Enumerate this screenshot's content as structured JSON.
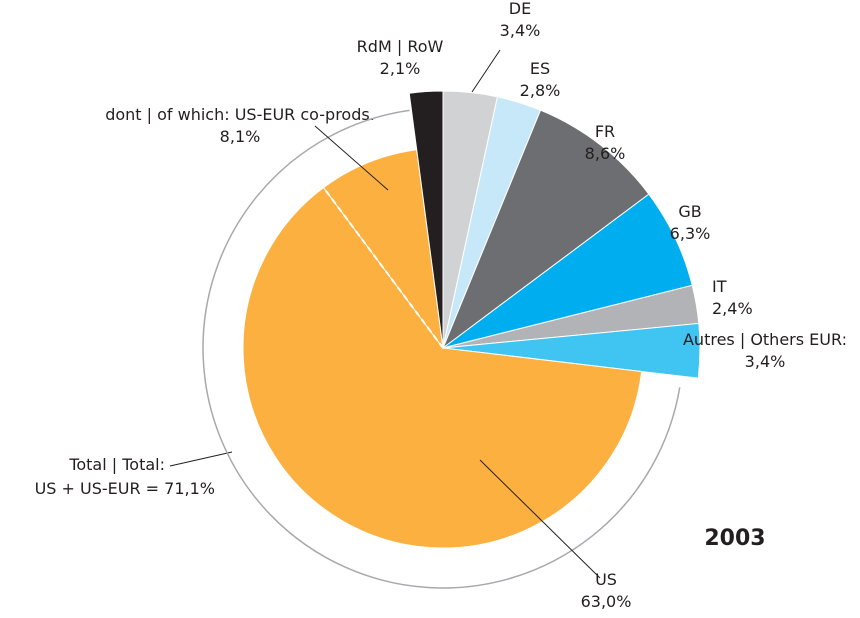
{
  "chart_data": {
    "type": "pie",
    "title": "2003",
    "categories": [
      "DE",
      "ES",
      "FR",
      "GB",
      "IT",
      "Autres | Others EUR:",
      "US",
      "dont | of which: US-EUR co-prods.",
      "RdM | RoW"
    ],
    "values": [
      3.4,
      2.8,
      8.6,
      6.3,
      2.4,
      3.4,
      63.0,
      8.1,
      2.1
    ],
    "value_labels": [
      "3,4%",
      "2,8%",
      "8,6%",
      "6,3%",
      "2,4%",
      "3,4%",
      "63,0%",
      "8,1%",
      "2,1%"
    ],
    "colors": [
      "#d1d2d4",
      "#c7e8f8",
      "#6d6e71",
      "#00aeef",
      "#b1b3b6",
      "#40c4f2",
      "#fbb040",
      "#fbb040",
      "#231f20"
    ],
    "total": {
      "label": "Total | Total:",
      "value": 71.1,
      "value_label": "US + US-EUR = 71,1%"
    }
  }
}
